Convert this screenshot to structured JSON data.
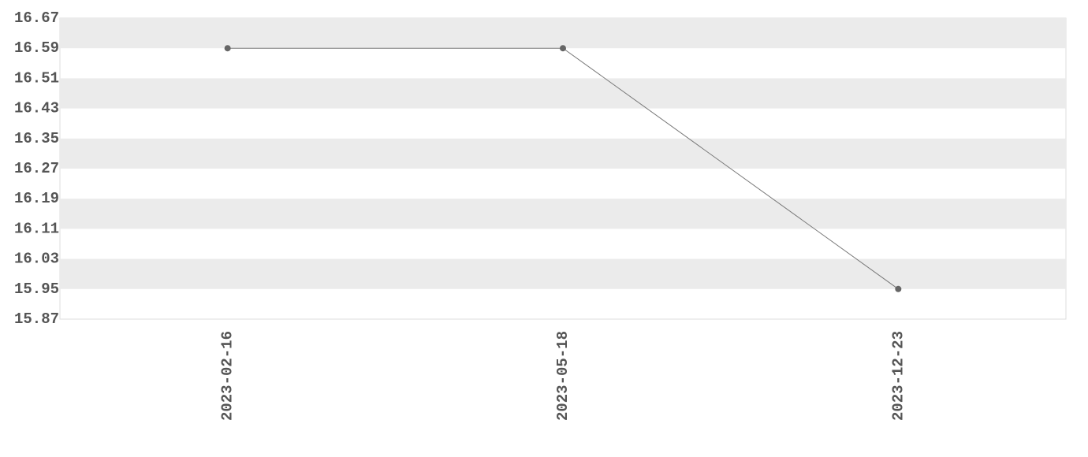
{
  "chart_data": {
    "type": "line",
    "categories": [
      "2023-02-16",
      "2023-05-18",
      "2023-12-23"
    ],
    "values": [
      16.59,
      16.59,
      15.95
    ],
    "color": "#777777",
    "ylim": [
      15.87,
      16.67
    ],
    "yticks": [
      15.87,
      15.95,
      16.03,
      16.11,
      16.19,
      16.27,
      16.35,
      16.43,
      16.51,
      16.59,
      16.67
    ],
    "grid": true
  }
}
